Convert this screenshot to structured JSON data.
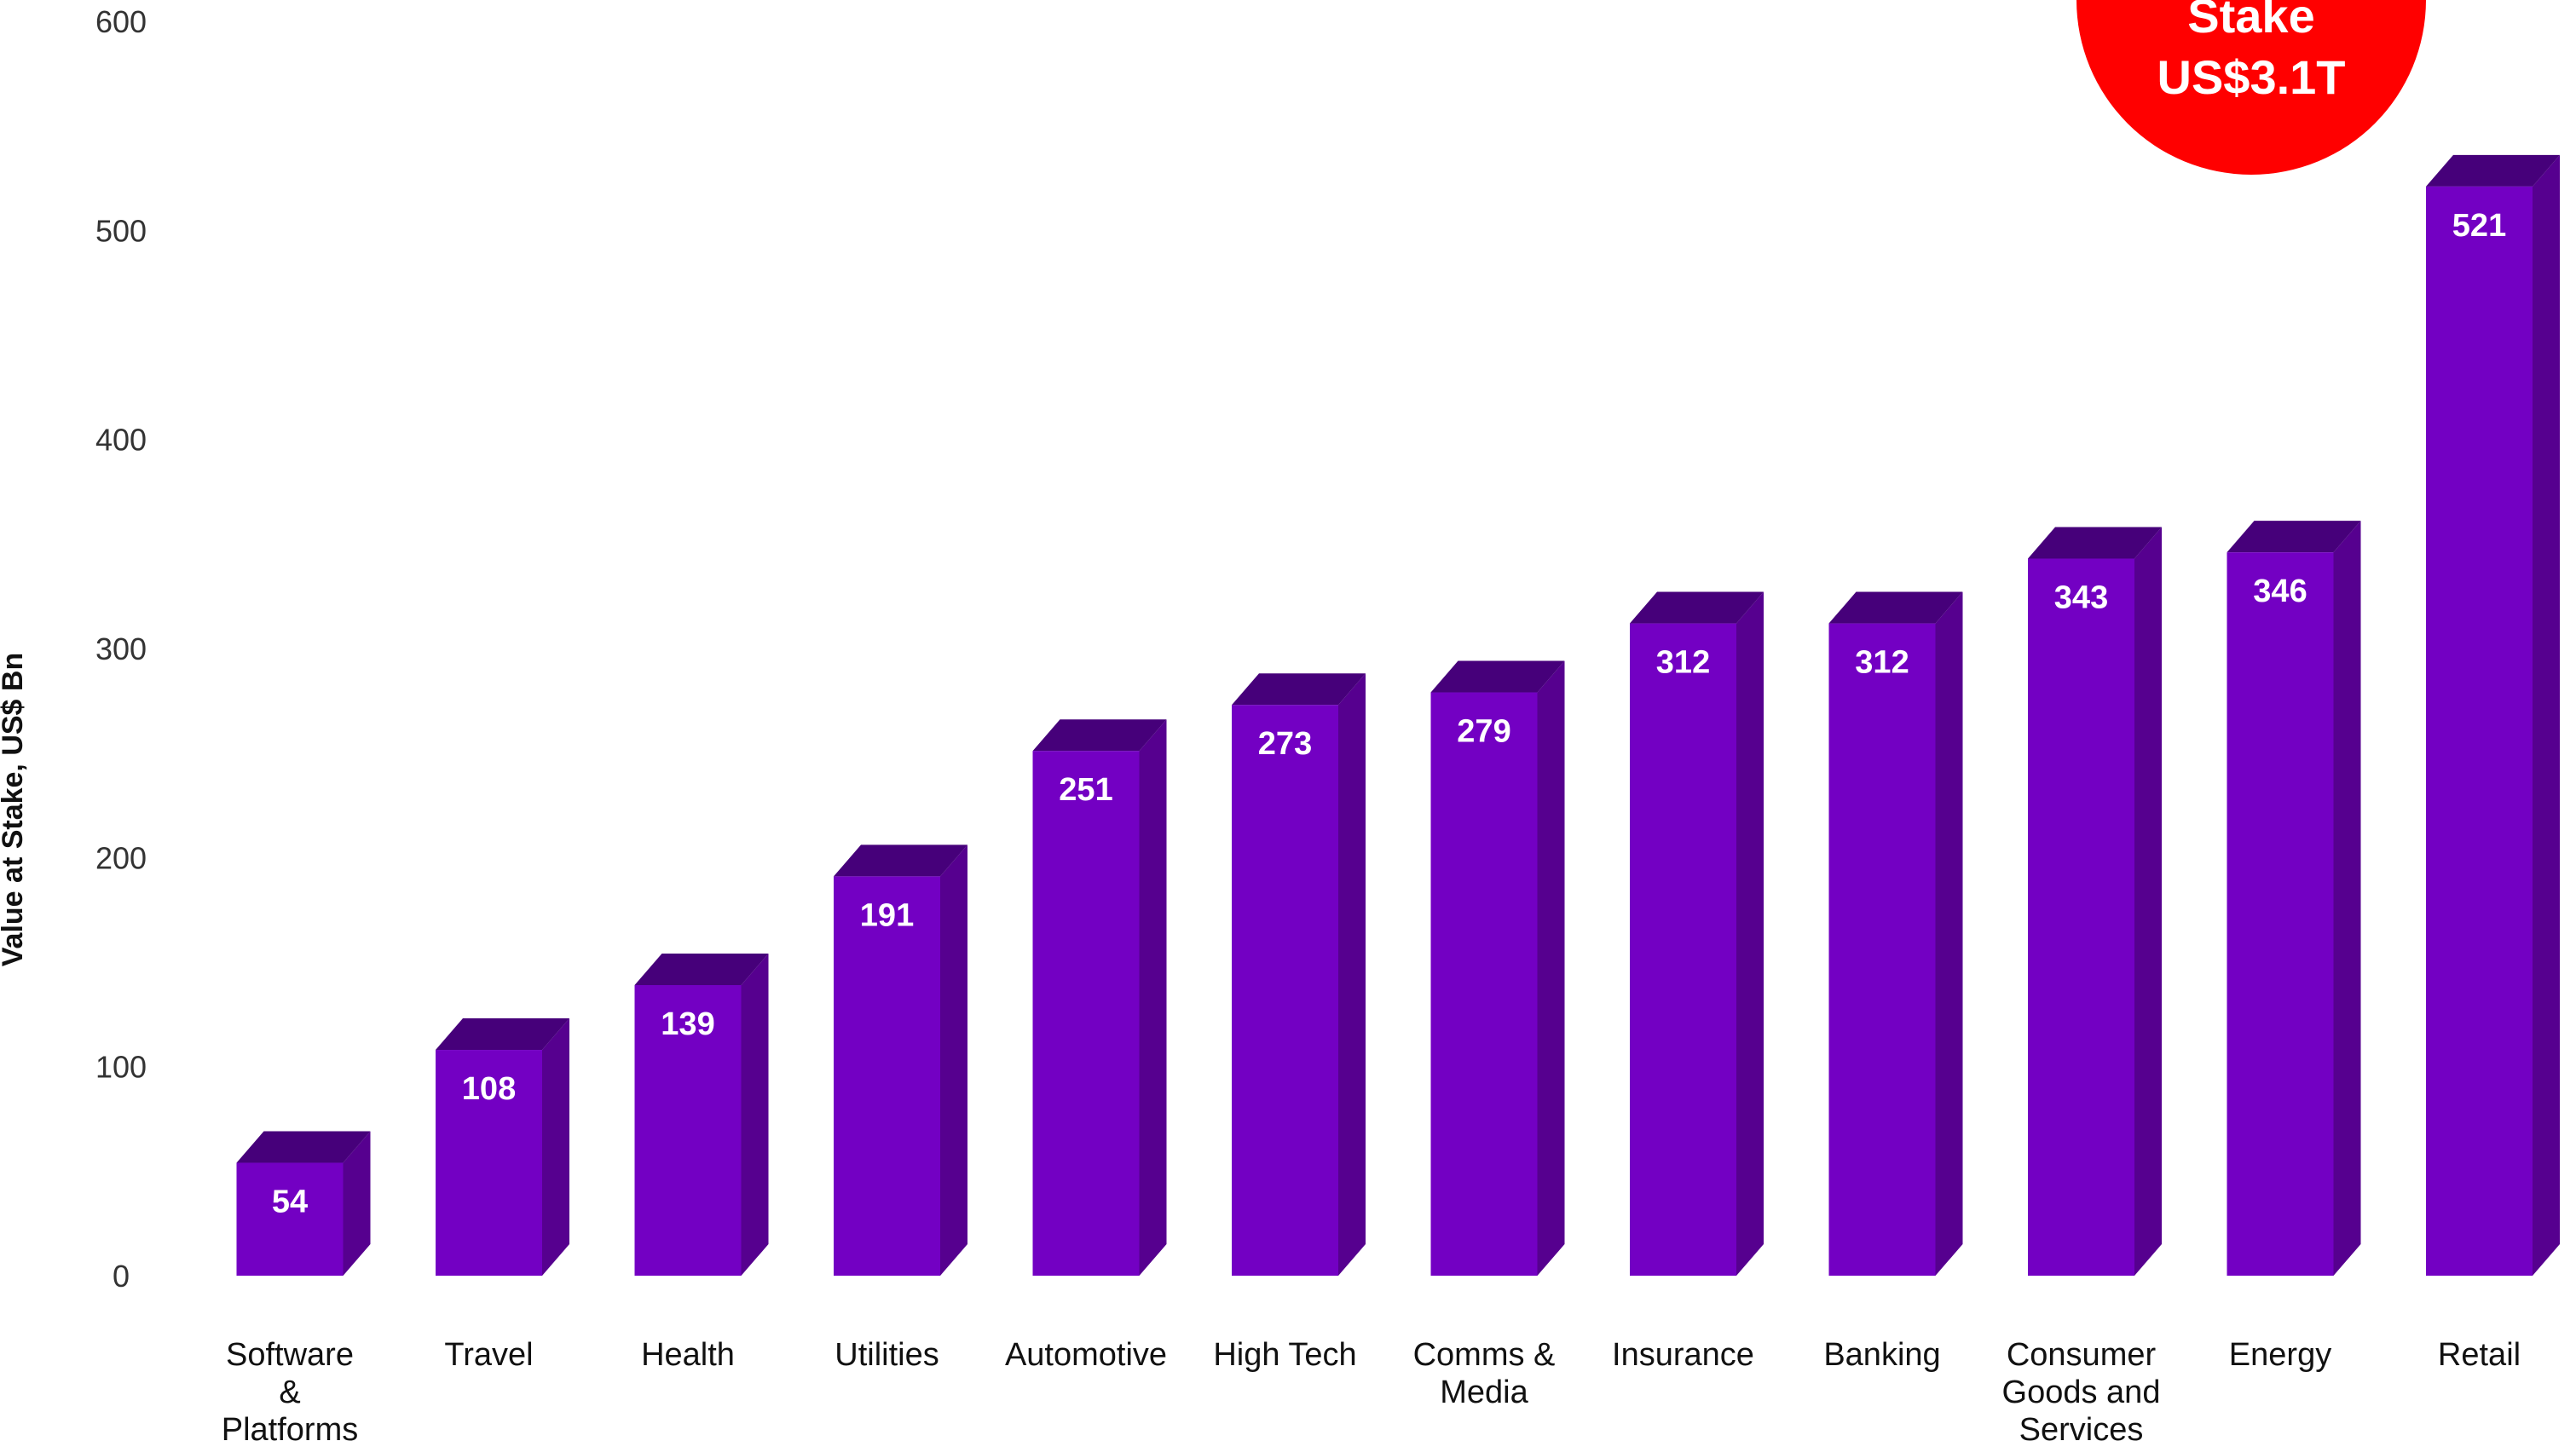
{
  "chart_data": {
    "type": "bar",
    "categories": [
      [
        "Software",
        "&",
        "Platforms"
      ],
      [
        "Travel"
      ],
      [
        "Health"
      ],
      [
        "Utilities"
      ],
      [
        "Automotive"
      ],
      [
        "High Tech"
      ],
      [
        "Comms &",
        "Media"
      ],
      [
        "Insurance"
      ],
      [
        "Banking"
      ],
      [
        "Consumer",
        "Goods and",
        "Services"
      ],
      [
        "Energy"
      ],
      [
        "Retail"
      ]
    ],
    "values": [
      54,
      108,
      139,
      191,
      251,
      273,
      279,
      312,
      312,
      343,
      346,
      521
    ],
    "value_labels": [
      "54",
      "108",
      "139",
      "191",
      "251",
      "273",
      "279",
      "312",
      "312",
      "343",
      "346",
      "521"
    ],
    "ylabel": "Value at Stake, US$ Bn",
    "ylim": [
      0,
      600
    ],
    "yticks": [
      "0",
      "100",
      "200",
      "300",
      "400",
      "500",
      "600"
    ],
    "grid": false,
    "colors": {
      "bar_front": "#7300C3",
      "bar_top": "#46007A",
      "bar_side": "#56008F",
      "badge": "#FF0000"
    },
    "badge": {
      "lines": [
        "Stake",
        "US$3.1T"
      ]
    }
  }
}
